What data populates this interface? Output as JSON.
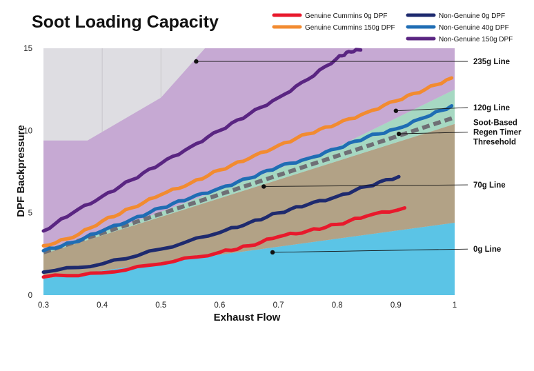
{
  "chart_data": {
    "type": "area",
    "title": "Soot Loading Capacity",
    "xlabel": "Exhaust Flow",
    "ylabel": "DPF Backpressure",
    "xlim": [
      0.3,
      1.0
    ],
    "ylim": [
      0,
      15
    ],
    "x_ticks": [
      {
        "value": 0.3,
        "label": "0.3"
      },
      {
        "value": 0.4,
        "label": "0.4"
      },
      {
        "value": 0.5,
        "label": "0.5"
      },
      {
        "value": 0.6,
        "label": "0.6"
      },
      {
        "value": 0.7,
        "label": "0.7"
      },
      {
        "value": 0.8,
        "label": "0.8"
      },
      {
        "value": 0.9,
        "label": "0.9"
      },
      {
        "value": 1.0,
        "label": "1"
      }
    ],
    "y_ticks": [
      {
        "value": 0,
        "label": "0"
      },
      {
        "value": 5,
        "label": "5"
      },
      {
        "value": 10,
        "label": "10"
      },
      {
        "value": 15,
        "label": "15"
      }
    ],
    "bands": [
      {
        "name": "0g band",
        "color": "#5bc4e6",
        "lower": [
          [
            0.3,
            0
          ],
          [
            1.0,
            0
          ]
        ],
        "upper": [
          [
            0.3,
            1.0
          ],
          [
            1.0,
            4.4
          ]
        ]
      },
      {
        "name": "70g band",
        "color": "#b2a286",
        "lower": [
          [
            0.3,
            1.0
          ],
          [
            1.0,
            4.4
          ]
        ],
        "upper": [
          [
            0.3,
            2.5
          ],
          [
            1.0,
            10.4
          ]
        ]
      },
      {
        "name": "120g band",
        "color": "#a6d8c2",
        "lower": [
          [
            0.3,
            2.5
          ],
          [
            1.0,
            10.4
          ]
        ],
        "upper": [
          [
            0.3,
            2.75
          ],
          [
            0.45,
            4.4
          ],
          [
            0.6,
            6.4
          ],
          [
            0.8,
            9.0
          ],
          [
            1.0,
            12.5
          ]
        ]
      },
      {
        "name": "235g band",
        "color": "#c6a9d3",
        "lower": [
          [
            0.3,
            2.75
          ],
          [
            0.45,
            4.4
          ],
          [
            0.6,
            6.4
          ],
          [
            0.8,
            9.0
          ],
          [
            1.0,
            12.5
          ]
        ],
        "upper": [
          [
            0.3,
            9.4
          ],
          [
            0.375,
            9.4
          ],
          [
            0.5,
            12.0
          ],
          [
            0.575,
            15.0
          ],
          [
            1.0,
            15.0
          ]
        ]
      }
    ],
    "series": [
      {
        "name": "Genuine Cummins 0g DPF",
        "color": "#e8192c",
        "width": 5,
        "points": [
          [
            0.3,
            1.1
          ],
          [
            0.4,
            1.35
          ],
          [
            0.5,
            1.9
          ],
          [
            0.6,
            2.6
          ],
          [
            0.65,
            3.0
          ],
          [
            0.7,
            3.55
          ],
          [
            0.75,
            3.9
          ],
          [
            0.8,
            4.3
          ],
          [
            0.85,
            4.8
          ],
          [
            0.915,
            5.3
          ]
        ]
      },
      {
        "name": "Genuine Cummins 150g DPF",
        "color": "#f28b30",
        "width": 5,
        "points": [
          [
            0.3,
            3.0
          ],
          [
            0.35,
            3.5
          ],
          [
            0.4,
            4.5
          ],
          [
            0.45,
            5.3
          ],
          [
            0.5,
            6.1
          ],
          [
            0.55,
            6.8
          ],
          [
            0.6,
            7.6
          ],
          [
            0.65,
            8.3
          ],
          [
            0.7,
            9.1
          ],
          [
            0.75,
            9.8
          ],
          [
            0.8,
            10.4
          ],
          [
            0.85,
            11.1
          ],
          [
            0.9,
            11.8
          ],
          [
            0.95,
            12.5
          ],
          [
            0.995,
            13.2
          ]
        ]
      },
      {
        "name": "Non-Genuine 0g DPF",
        "color": "#1e2a6e",
        "width": 5,
        "points": [
          [
            0.3,
            1.4
          ],
          [
            0.4,
            1.9
          ],
          [
            0.5,
            2.8
          ],
          [
            0.6,
            3.8
          ],
          [
            0.65,
            4.4
          ],
          [
            0.7,
            5.0
          ],
          [
            0.75,
            5.5
          ],
          [
            0.8,
            6.0
          ],
          [
            0.85,
            6.6
          ],
          [
            0.905,
            7.2
          ]
        ]
      },
      {
        "name": "Non-Genuine 40g DPF",
        "color": "#1f6db4",
        "width": 5,
        "points": [
          [
            0.3,
            2.7
          ],
          [
            0.35,
            3.2
          ],
          [
            0.4,
            3.9
          ],
          [
            0.45,
            4.6
          ],
          [
            0.5,
            5.3
          ],
          [
            0.55,
            5.9
          ],
          [
            0.6,
            6.5
          ],
          [
            0.65,
            7.1
          ],
          [
            0.7,
            7.8
          ],
          [
            0.75,
            8.3
          ],
          [
            0.8,
            8.9
          ],
          [
            0.85,
            9.6
          ],
          [
            0.9,
            10.1
          ],
          [
            0.95,
            10.8
          ],
          [
            0.995,
            11.5
          ]
        ]
      },
      {
        "name": "Non-Genuine 150g DPF",
        "color": "#5a2582",
        "width": 5,
        "points": [
          [
            0.3,
            3.9
          ],
          [
            0.35,
            5.0
          ],
          [
            0.4,
            6.0
          ],
          [
            0.45,
            7.0
          ],
          [
            0.5,
            8.0
          ],
          [
            0.55,
            9.0
          ],
          [
            0.6,
            10.0
          ],
          [
            0.65,
            11.0
          ],
          [
            0.7,
            12.0
          ],
          [
            0.75,
            13.1
          ],
          [
            0.8,
            14.4
          ],
          [
            0.82,
            14.8
          ],
          [
            0.84,
            14.9
          ]
        ]
      }
    ],
    "threshold": {
      "name": "Soot-Based Regen Timer Thresehold",
      "color": "#6f6f75",
      "points": [
        [
          0.3,
          2.6
        ],
        [
          1.0,
          10.8
        ]
      ]
    },
    "annotations": [
      {
        "label": "235g Line",
        "point": [
          0.56,
          14.2
        ],
        "label_value_y": 14.2
      },
      {
        "label": "120g Line",
        "point": [
          0.9,
          11.2
        ],
        "label_value_y": 11.4
      },
      {
        "label": "Soot-Based",
        "label2": "Regen Timer",
        "label3": "Thresehold",
        "point": [
          0.905,
          9.8
        ],
        "label_value_y": 9.9
      },
      {
        "label": "70g Line",
        "point": [
          0.675,
          6.6
        ],
        "label_value_y": 6.7
      },
      {
        "label": "0g Line",
        "point": [
          0.69,
          2.6
        ],
        "label_value_y": 2.8
      }
    ],
    "legend": [
      {
        "label": "Genuine Cummins 0g DPF",
        "color": "#e8192c"
      },
      {
        "label": "Genuine Cummins 150g DPF",
        "color": "#f28b30"
      },
      {
        "label": "Non-Genuine 0g DPF",
        "color": "#1e2a6e"
      },
      {
        "label": "Non-Genuine 40g DPF",
        "color": "#1f6db4"
      },
      {
        "label": "Non-Genuine 150g DPF",
        "color": "#5a2582"
      }
    ],
    "legend_position": "top-right",
    "background_color": "#dedde2",
    "grid": true
  }
}
